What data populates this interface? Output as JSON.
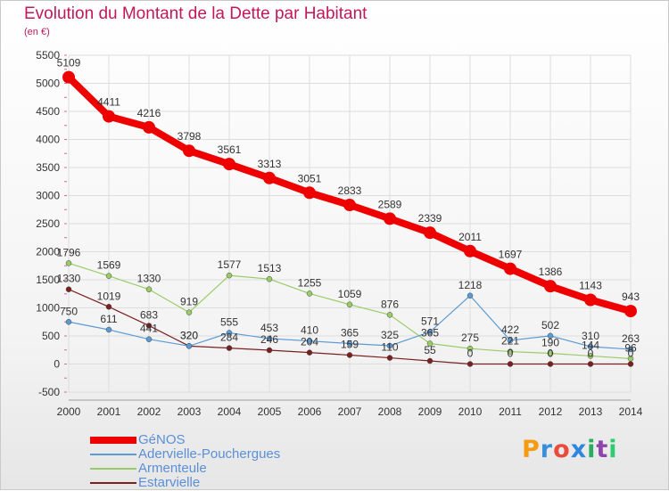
{
  "title": "Evolution du Montant de la Dette par Habitant",
  "subtitle": "(en €)",
  "logo": "Proxiti",
  "colors": {
    "title": "#c2185b",
    "legend_text": "#5b8fd6",
    "grid": "#dddddd",
    "axis_text": "#333333"
  },
  "chart_data": {
    "type": "line",
    "x": [
      "2000",
      "2001",
      "2002",
      "2003",
      "2004",
      "2005",
      "2006",
      "2007",
      "2008",
      "2009",
      "2010",
      "2011",
      "2012",
      "2013",
      "2014"
    ],
    "ylim": [
      -500,
      5500
    ],
    "yticks": [
      "-500",
      "0",
      "500",
      "1000",
      "1500",
      "2000",
      "2500",
      "3000",
      "3500",
      "4000",
      "4500",
      "5000",
      "5500"
    ],
    "grid": true,
    "legend_position": "bottom-left",
    "series": [
      {
        "name": "GéNOS",
        "color": "#ee0000",
        "values": [
          5109,
          4411,
          4216,
          3798,
          3561,
          3313,
          3051,
          2833,
          2589,
          2339,
          2011,
          1697,
          1386,
          1143,
          943
        ],
        "labels": [
          "5109",
          "4411",
          "4216",
          "3798",
          "3561",
          "3313",
          "3051",
          "2833",
          "2589",
          "2339",
          "2011",
          "1697",
          "1386",
          "1143",
          "943"
        ]
      },
      {
        "name": "Adervielle-Pouchergues",
        "color": "#5b9bd5",
        "values": [
          750,
          611,
          441,
          320,
          555,
          453,
          410,
          365,
          325,
          571,
          1218,
          422,
          502,
          310,
          263
        ],
        "labels": [
          "750",
          "611",
          "441",
          "320",
          "555",
          "453",
          "410",
          "365",
          "325",
          "571",
          "1218",
          "422",
          "502",
          "310",
          "263"
        ]
      },
      {
        "name": "Armenteule",
        "color": "#99cc66",
        "values": [
          1796,
          1569,
          1330,
          919,
          1577,
          1513,
          1255,
          1059,
          876,
          365,
          275,
          221,
          190,
          144,
          96
        ],
        "labels": [
          "1796",
          "1569",
          "1330",
          "919",
          "1577",
          "1513",
          "1255",
          "1059",
          "876",
          "365",
          "275",
          "221",
          "190",
          "144",
          "96"
        ]
      },
      {
        "name": "Estarvielle",
        "color": "#7b2020",
        "values": [
          1330,
          1019,
          683,
          320,
          284,
          246,
          204,
          159,
          110,
          55,
          0,
          0,
          0,
          0,
          0
        ],
        "labels": [
          "1330",
          "1019",
          "683",
          "320",
          "284",
          "246",
          "204",
          "159",
          "110",
          "55",
          "0",
          "0",
          "0",
          "0",
          "0"
        ]
      }
    ]
  }
}
